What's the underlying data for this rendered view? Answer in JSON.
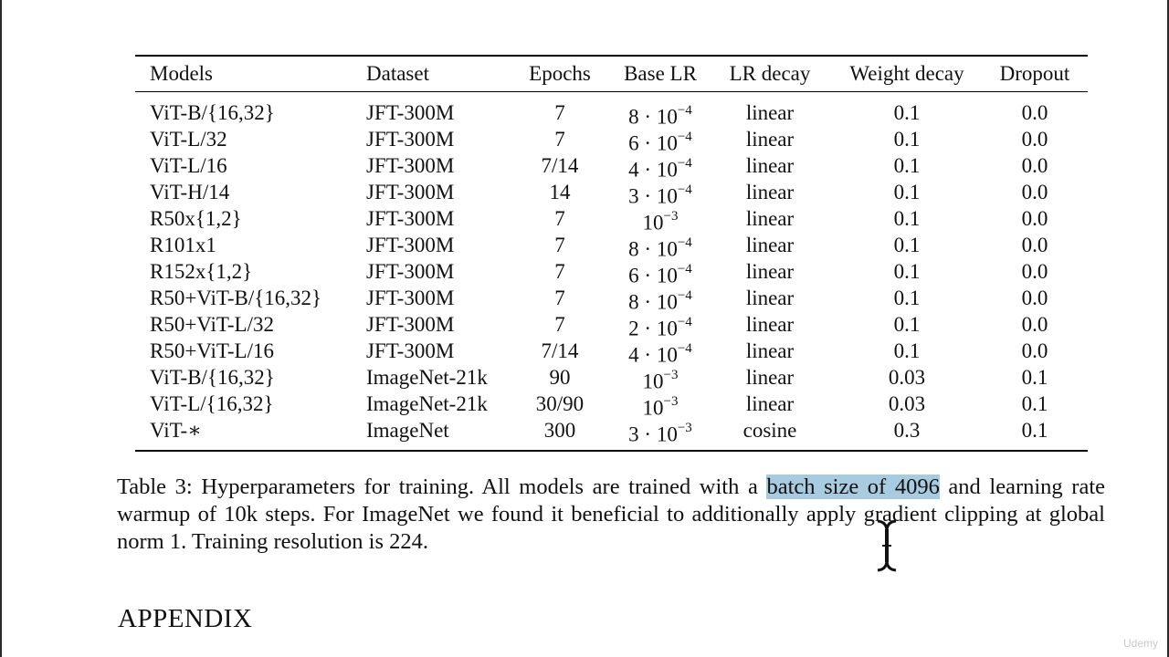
{
  "table": {
    "headers": [
      "Models",
      "Dataset",
      "Epochs",
      "Base LR",
      "LR decay",
      "Weight decay",
      "Dropout"
    ],
    "rows": [
      {
        "model": "ViT-B/{16,32}",
        "dataset": "JFT-300M",
        "epochs": "7",
        "lr_base": "8 · 10",
        "lr_exp": "−4",
        "decay": "linear",
        "wd": "0.1",
        "dropout": "0.0"
      },
      {
        "model": "ViT-L/32",
        "dataset": "JFT-300M",
        "epochs": "7",
        "lr_base": "6 · 10",
        "lr_exp": "−4",
        "decay": "linear",
        "wd": "0.1",
        "dropout": "0.0"
      },
      {
        "model": "ViT-L/16",
        "dataset": "JFT-300M",
        "epochs": "7/14",
        "lr_base": "4 · 10",
        "lr_exp": "−4",
        "decay": "linear",
        "wd": "0.1",
        "dropout": "0.0"
      },
      {
        "model": "ViT-H/14",
        "dataset": "JFT-300M",
        "epochs": "14",
        "lr_base": "3 · 10",
        "lr_exp": "−4",
        "decay": "linear",
        "wd": "0.1",
        "dropout": "0.0"
      },
      {
        "model": "R50x{1,2}",
        "dataset": "JFT-300M",
        "epochs": "7",
        "lr_base": "10",
        "lr_exp": "−3",
        "decay": "linear",
        "wd": "0.1",
        "dropout": "0.0"
      },
      {
        "model": "R101x1",
        "dataset": "JFT-300M",
        "epochs": "7",
        "lr_base": "8 · 10",
        "lr_exp": "−4",
        "decay": "linear",
        "wd": "0.1",
        "dropout": "0.0"
      },
      {
        "model": "R152x{1,2}",
        "dataset": "JFT-300M",
        "epochs": "7",
        "lr_base": "6 · 10",
        "lr_exp": "−4",
        "decay": "linear",
        "wd": "0.1",
        "dropout": "0.0"
      },
      {
        "model": "R50+ViT-B/{16,32}",
        "dataset": "JFT-300M",
        "epochs": "7",
        "lr_base": "8 · 10",
        "lr_exp": "−4",
        "decay": "linear",
        "wd": "0.1",
        "dropout": "0.0"
      },
      {
        "model": "R50+ViT-L/32",
        "dataset": "JFT-300M",
        "epochs": "7",
        "lr_base": "2 · 10",
        "lr_exp": "−4",
        "decay": "linear",
        "wd": "0.1",
        "dropout": "0.0"
      },
      {
        "model": "R50+ViT-L/16",
        "dataset": "JFT-300M",
        "epochs": "7/14",
        "lr_base": "4 · 10",
        "lr_exp": "−4",
        "decay": "linear",
        "wd": "0.1",
        "dropout": "0.0"
      },
      {
        "model": "ViT-B/{16,32}",
        "dataset": "ImageNet-21k",
        "epochs": "90",
        "lr_base": "10",
        "lr_exp": "−3",
        "decay": "linear",
        "wd": "0.03",
        "dropout": "0.1"
      },
      {
        "model": "ViT-L/{16,32}",
        "dataset": "ImageNet-21k",
        "epochs": "30/90",
        "lr_base": "10",
        "lr_exp": "−3",
        "decay": "linear",
        "wd": "0.03",
        "dropout": "0.1"
      },
      {
        "model": "ViT-∗",
        "dataset": "ImageNet",
        "epochs": "300",
        "lr_base": "3 · 10",
        "lr_exp": "−3",
        "decay": "cosine",
        "wd": "0.3",
        "dropout": "0.1"
      }
    ]
  },
  "caption": {
    "before": "Table 3: Hyperparameters for training. All models are trained with a ",
    "highlight": "batch size of 4096",
    "after": " and learning rate warmup of 10k steps. For ImageNet we found it beneficial to additionally apply gradient clipping at global norm 1. Training resolution is 224.",
    "highlight_color": "#a9cbe0"
  },
  "section": {
    "title": "APPENDIX"
  },
  "watermark": "Udemy",
  "cursor": {
    "icon": "text-cursor-icon"
  }
}
